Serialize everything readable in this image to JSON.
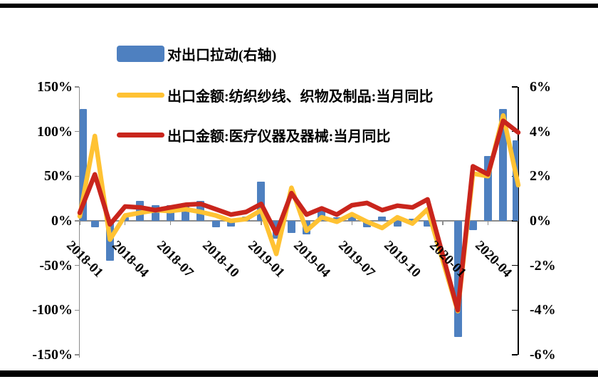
{
  "legend": {
    "items": [
      {
        "label": "对出口拉动(右轴)",
        "type": "bar",
        "color": "#4E80C0"
      },
      {
        "label": "出口金额:纺织纱线、织物及制品:当月同比",
        "type": "line",
        "color": "#FFC233"
      },
      {
        "label": "出口金额:医疗仪器及器械:当月同比",
        "type": "line",
        "color": "#C9251C"
      }
    ]
  },
  "chart_data": {
    "type": "combo",
    "title": "",
    "categories": [
      "2018-01",
      "2018-02",
      "2018-03",
      "2018-04",
      "2018-05",
      "2018-06",
      "2018-07",
      "2018-08",
      "2018-09",
      "2018-10",
      "2018-11",
      "2018-12",
      "2019-01",
      "2019-02",
      "2019-03",
      "2019-04",
      "2019-05",
      "2019-06",
      "2019-07",
      "2019-08",
      "2019-09",
      "2019-10",
      "2019-11",
      "2019-12",
      "2020-01",
      "2020-02",
      "2020-03",
      "2020-04",
      "2020-05",
      "2020-06"
    ],
    "series": [
      {
        "name": "对出口拉动(右轴)",
        "type": "bar",
        "axis": "right",
        "color": "#4E80C0",
        "values": [
          5.0,
          -0.3,
          -1.8,
          0.15,
          0.9,
          0.7,
          0.7,
          0.7,
          0.9,
          -0.3,
          -0.25,
          0.2,
          1.75,
          -0.8,
          -0.55,
          -0.6,
          0.45,
          0.15,
          0.3,
          -0.3,
          0.2,
          -0.25,
          0.1,
          -0.25,
          0,
          -5.2,
          -0.4,
          2.9,
          5.0,
          3.6
        ]
      },
      {
        "name": "出口金额:纺织纱线、织物及制品:当月同比",
        "type": "line",
        "axis": "left",
        "color": "#FFC233",
        "values": [
          5,
          95,
          -21,
          6,
          9,
          12,
          11,
          13,
          10,
          6,
          0,
          2,
          12,
          -37,
          37,
          -11,
          4,
          -1,
          7.5,
          -1,
          -8,
          4,
          -3,
          13,
          -44,
          -101,
          53,
          50,
          118,
          40
        ]
      },
      {
        "name": "出口金额:医疗仪器及器械:当月同比",
        "type": "line",
        "axis": "left",
        "color": "#C9251C",
        "values": [
          9,
          52,
          -4,
          16,
          15,
          12,
          15,
          18,
          19,
          13,
          7,
          10,
          19,
          -14,
          31,
          7,
          14,
          7,
          17.5,
          20,
          12,
          17,
          15,
          24,
          -38,
          -100,
          61,
          52,
          112,
          99
        ]
      }
    ],
    "left_axis": {
      "min": -150,
      "max": 150,
      "tick_labels": [
        "150%",
        "100%",
        "50%",
        "0%",
        "-50%",
        "-100%",
        "-150%"
      ]
    },
    "right_axis": {
      "min": -6,
      "max": 6,
      "tick_labels": [
        "6%",
        "4%",
        "2%",
        "0%",
        "-2%",
        "-4%",
        "-6%"
      ]
    },
    "x_tick_labels": [
      "2018-01",
      "2018-04",
      "2018-07",
      "2018-10",
      "2019-01",
      "2019-04",
      "2019-07",
      "2019-10",
      "2020-01",
      "2020-04"
    ],
    "legend_position": "top-left",
    "grid": false,
    "colors": {
      "axis_gray": "#8c8c8c",
      "right_axis_black": "#000000"
    }
  }
}
